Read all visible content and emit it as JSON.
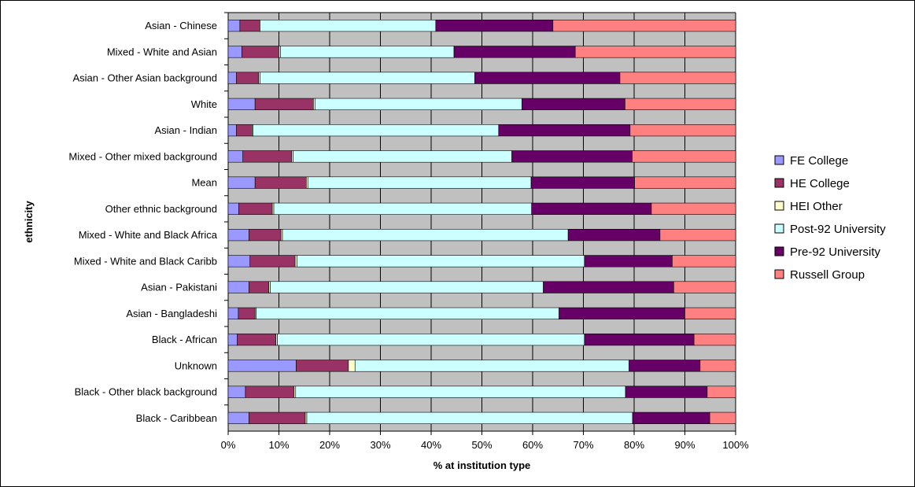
{
  "chart_data": {
    "type": "bar",
    "orientation": "horizontal",
    "stacked": "percent",
    "xlabel": "% at institution type",
    "ylabel": "ethnicity",
    "xlim": [
      0,
      100
    ],
    "x_ticks": [
      "0%",
      "10%",
      "20%",
      "30%",
      "40%",
      "50%",
      "60%",
      "70%",
      "80%",
      "90%",
      "100%"
    ],
    "grid": true,
    "legend_position": "right",
    "categories": [
      "Asian - Chinese",
      "Mixed - White and Asian",
      "Asian - Other Asian background",
      "White",
      "Asian - Indian",
      "Mixed - Other mixed background",
      "Mean",
      "Other ethnic background",
      "Mixed - White and Black Africa",
      "Mixed - White and Black Caribb",
      "Asian - Pakistani",
      "Asian - Bangladeshi",
      "Black - African",
      "Unknown",
      "Black - Other black background",
      "Black - Caribbean"
    ],
    "series": [
      {
        "name": "FE College",
        "color": "#9999ff",
        "values": [
          2.3,
          2.7,
          1.6,
          5.3,
          1.6,
          2.9,
          5.3,
          2.1,
          4.1,
          4.3,
          4.1,
          2.0,
          1.8,
          13.4,
          3.4,
          4.1
        ]
      },
      {
        "name": "HE College",
        "color": "#993366",
        "values": [
          3.8,
          7.3,
          4.4,
          11.5,
          3.1,
          9.6,
          10.1,
          6.6,
          6.3,
          8.9,
          3.9,
          3.3,
          7.6,
          10.3,
          9.6,
          11.1
        ]
      },
      {
        "name": "HEI Other",
        "color": "#ffffcc",
        "values": [
          0.2,
          0.3,
          0.3,
          0.3,
          0.2,
          0.3,
          0.3,
          0.3,
          0.3,
          0.4,
          0.3,
          0.2,
          0.3,
          1.3,
          0.3,
          0.3
        ]
      },
      {
        "name": "Post-92 University",
        "color": "#ccffff",
        "values": [
          34.6,
          34.2,
          42.3,
          40.8,
          48.4,
          43.1,
          44.0,
          50.8,
          56.3,
          56.6,
          53.8,
          59.7,
          60.5,
          54.0,
          65.0,
          64.2
        ]
      },
      {
        "name": "Pre-92 University",
        "color": "#660066",
        "values": [
          23.1,
          23.9,
          28.6,
          20.3,
          25.9,
          23.7,
          20.4,
          23.6,
          18.1,
          17.3,
          25.7,
          24.8,
          21.6,
          14.0,
          16.1,
          15.2
        ]
      },
      {
        "name": "Russell Group",
        "color": "#ff8080",
        "values": [
          36.0,
          31.6,
          22.8,
          21.8,
          20.8,
          20.4,
          19.9,
          16.6,
          14.9,
          12.5,
          12.2,
          10.0,
          8.2,
          7.0,
          5.6,
          5.1
        ]
      }
    ]
  }
}
